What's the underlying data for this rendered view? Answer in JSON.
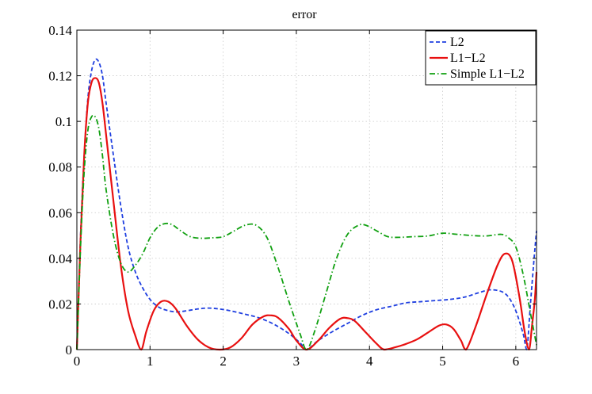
{
  "chart_data": {
    "type": "line",
    "title": "error",
    "xlabel": "",
    "ylabel": "",
    "xlim": [
      0,
      6.2832
    ],
    "ylim": [
      0,
      0.14
    ],
    "xticks": [
      0,
      1,
      2,
      3,
      4,
      5,
      6
    ],
    "xtick_labels": [
      "0",
      "1",
      "2",
      "3",
      "4",
      "5",
      "6"
    ],
    "yticks": [
      0,
      0.02,
      0.04,
      0.06,
      0.08,
      0.1,
      0.12,
      0.14
    ],
    "ytick_labels": [
      "0",
      "0.02",
      "0.04",
      "0.06",
      "0.08",
      "0.1",
      "0.12",
      "0.14"
    ],
    "grid": true,
    "legend_position": "top-right",
    "series": [
      {
        "name": "L2",
        "color": "#1f3fe0",
        "style": "dashed",
        "x": [
          0,
          0.05,
          0.1,
          0.15,
          0.2,
          0.25,
          0.3,
          0.35,
          0.4,
          0.5,
          0.6,
          0.7,
          0.8,
          0.9,
          1.0,
          1.1,
          1.2,
          1.35,
          1.5,
          1.65,
          1.8,
          1.95,
          2.1,
          2.3,
          2.5,
          2.7,
          2.9,
          3.05,
          3.14,
          3.3,
          3.5,
          3.7,
          3.9,
          4.1,
          4.3,
          4.5,
          4.7,
          4.9,
          5.1,
          5.3,
          5.5,
          5.65,
          5.8,
          5.9,
          6.0,
          6.1,
          6.15,
          6.2,
          6.25,
          6.2832
        ],
        "y": [
          0,
          0.05,
          0.085,
          0.11,
          0.122,
          0.127,
          0.126,
          0.12,
          0.108,
          0.085,
          0.063,
          0.045,
          0.034,
          0.027,
          0.022,
          0.019,
          0.0175,
          0.0165,
          0.017,
          0.0178,
          0.0182,
          0.0178,
          0.017,
          0.0155,
          0.0138,
          0.011,
          0.007,
          0.003,
          0,
          0.004,
          0.008,
          0.0115,
          0.015,
          0.0175,
          0.019,
          0.0205,
          0.021,
          0.0215,
          0.022,
          0.023,
          0.025,
          0.0262,
          0.0255,
          0.023,
          0.017,
          0.007,
          0,
          0.02,
          0.04,
          0.052
        ]
      },
      {
        "name": "L1−L2",
        "color": "#e81010",
        "style": "solid",
        "x": [
          0,
          0.05,
          0.1,
          0.15,
          0.2,
          0.25,
          0.3,
          0.35,
          0.4,
          0.5,
          0.6,
          0.7,
          0.8,
          0.88,
          0.95,
          1.05,
          1.15,
          1.25,
          1.35,
          1.5,
          1.65,
          1.8,
          1.95,
          2.1,
          2.25,
          2.4,
          2.55,
          2.65,
          2.75,
          2.9,
          3.0,
          3.14,
          3.3,
          3.45,
          3.6,
          3.7,
          3.8,
          3.95,
          4.1,
          4.2,
          4.35,
          4.5,
          4.65,
          4.8,
          4.95,
          5.05,
          5.15,
          5.25,
          5.32,
          5.45,
          5.6,
          5.75,
          5.85,
          5.95,
          6.05,
          6.12,
          6.18,
          6.22,
          6.26,
          6.2832
        ],
        "y": [
          0,
          0.048,
          0.085,
          0.108,
          0.117,
          0.119,
          0.117,
          0.108,
          0.094,
          0.065,
          0.037,
          0.017,
          0.006,
          0,
          0.008,
          0.017,
          0.021,
          0.021,
          0.018,
          0.0105,
          0.0045,
          0.001,
          0,
          0.001,
          0.005,
          0.011,
          0.0145,
          0.015,
          0.014,
          0.009,
          0.004,
          0,
          0.004,
          0.0095,
          0.0135,
          0.0138,
          0.0125,
          0.0075,
          0.0025,
          0,
          0.001,
          0.0025,
          0.0045,
          0.0075,
          0.0105,
          0.011,
          0.009,
          0.004,
          0,
          0.01,
          0.024,
          0.037,
          0.042,
          0.039,
          0.023,
          0.008,
          0,
          0.01,
          0.022,
          0.034
        ]
      },
      {
        "name": "Simple L1−L2",
        "color": "#10a010",
        "style": "dashdot",
        "x": [
          0,
          0.05,
          0.1,
          0.15,
          0.2,
          0.25,
          0.3,
          0.35,
          0.4,
          0.5,
          0.6,
          0.7,
          0.8,
          0.9,
          1.0,
          1.1,
          1.2,
          1.3,
          1.4,
          1.55,
          1.7,
          1.85,
          2.0,
          2.15,
          2.3,
          2.45,
          2.6,
          2.75,
          2.9,
          3.05,
          3.14,
          3.25,
          3.4,
          3.55,
          3.7,
          3.85,
          3.95,
          4.1,
          4.25,
          4.4,
          4.6,
          4.8,
          5.0,
          5.2,
          5.4,
          5.6,
          5.8,
          5.9,
          6.0,
          6.1,
          6.2,
          6.2832
        ],
        "y": [
          0,
          0.045,
          0.078,
          0.096,
          0.102,
          0.102,
          0.097,
          0.085,
          0.07,
          0.05,
          0.038,
          0.034,
          0.037,
          0.042,
          0.049,
          0.0535,
          0.0552,
          0.0548,
          0.0525,
          0.0495,
          0.0488,
          0.049,
          0.0495,
          0.052,
          0.0545,
          0.0545,
          0.049,
          0.036,
          0.021,
          0.007,
          0,
          0.008,
          0.024,
          0.04,
          0.0505,
          0.0545,
          0.0545,
          0.052,
          0.0495,
          0.0492,
          0.0495,
          0.0498,
          0.051,
          0.0505,
          0.05,
          0.0498,
          0.0505,
          0.049,
          0.045,
          0.033,
          0.016,
          0.002
        ]
      }
    ]
  }
}
